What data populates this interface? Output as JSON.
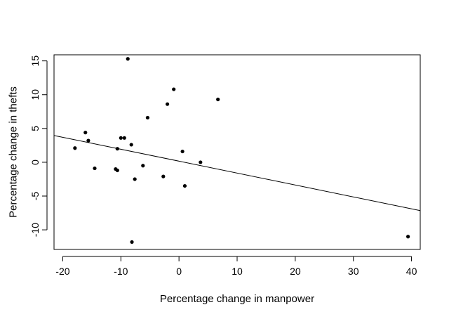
{
  "chart_data": {
    "type": "scatter",
    "title": "",
    "xlabel": "Percentage change in manpower",
    "ylabel": "Percentage change in thefts",
    "xlim": [
      -21.5,
      41.5
    ],
    "ylim": [
      -12.9,
      15.9
    ],
    "xticks": [
      -20,
      -10,
      0,
      10,
      20,
      30,
      40
    ],
    "xtick_labels": [
      "-20",
      "-10",
      "0",
      "10",
      "20",
      "30",
      "40"
    ],
    "yticks": [
      -10,
      -5,
      0,
      5,
      10,
      15
    ],
    "ytick_labels": [
      "-10",
      "-5",
      "0",
      "5",
      "10",
      "15"
    ],
    "grid": false,
    "legend": "none",
    "point_color": "#000000",
    "points": [
      {
        "x": -17.9,
        "y": 2.1
      },
      {
        "x": -16.1,
        "y": 4.4
      },
      {
        "x": -15.6,
        "y": 3.2
      },
      {
        "x": -14.5,
        "y": -0.9
      },
      {
        "x": -10.9,
        "y": -1.0
      },
      {
        "x": -10.6,
        "y": -1.2
      },
      {
        "x": -10.6,
        "y": 2.0
      },
      {
        "x": -10.0,
        "y": 3.6
      },
      {
        "x": -9.4,
        "y": 3.6
      },
      {
        "x": -8.8,
        "y": 15.3
      },
      {
        "x": -8.2,
        "y": 2.6
      },
      {
        "x": -8.1,
        "y": -11.8
      },
      {
        "x": -7.6,
        "y": -2.5
      },
      {
        "x": -6.2,
        "y": -0.5
      },
      {
        "x": -5.4,
        "y": 6.6
      },
      {
        "x": -2.7,
        "y": -2.1
      },
      {
        "x": -2.0,
        "y": 8.6
      },
      {
        "x": -0.9,
        "y": 10.8
      },
      {
        "x": 0.6,
        "y": 1.6
      },
      {
        "x": 1.0,
        "y": -3.5
      },
      {
        "x": 3.7,
        "y": 0.0
      },
      {
        "x": 6.7,
        "y": 9.3
      },
      {
        "x": 39.4,
        "y": -11.0
      }
    ],
    "fit_line": {
      "x1": -21.5,
      "y1": 3.96,
      "x2": 41.5,
      "y2": -7.16
    }
  }
}
